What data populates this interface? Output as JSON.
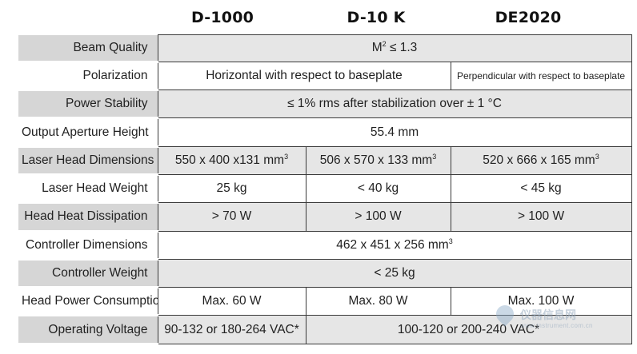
{
  "headers": [
    "D-1000",
    "D-10 K",
    "DE2020"
  ],
  "rows": [
    {
      "label": "Beam Quality",
      "cells": [
        {
          "span": 3,
          "text": "M",
          "sup": "2",
          "after": " ≤ 1.3"
        }
      ]
    },
    {
      "label": "Polarization",
      "cells": [
        {
          "span": 2,
          "text": "Horizontal with respect to baseplate"
        },
        {
          "span": 1,
          "text": "Perpendicular with respect to baseplate",
          "small": true
        }
      ]
    },
    {
      "label": "Power Stability",
      "cells": [
        {
          "span": 3,
          "text": "≤ 1% rms after stabilization over ± 1 °C"
        }
      ]
    },
    {
      "label": "Output Aperture Height",
      "cells": [
        {
          "span": 3,
          "text": "55.4 mm"
        }
      ]
    },
    {
      "label": "Laser Head Dimensions",
      "cells": [
        {
          "span": 1,
          "text": "550 x 400 x131 mm",
          "sup": "3"
        },
        {
          "span": 1,
          "text": "506 x 570 x 133 mm",
          "sup": "3"
        },
        {
          "span": 1,
          "text": "520 x 666 x 165 mm",
          "sup": "3"
        }
      ]
    },
    {
      "label": "Laser Head Weight",
      "cells": [
        {
          "span": 1,
          "text": "25 kg"
        },
        {
          "span": 1,
          "text": "< 40 kg"
        },
        {
          "span": 1,
          "text": "< 45 kg"
        }
      ]
    },
    {
      "label": "Head Heat Dissipation",
      "cells": [
        {
          "span": 1,
          "text": "> 70 W"
        },
        {
          "span": 1,
          "text": "> 100 W"
        },
        {
          "span": 1,
          "text": "> 100 W"
        }
      ]
    },
    {
      "label": "Controller Dimensions",
      "cells": [
        {
          "span": 3,
          "text": "462 x 451 x 256 mm",
          "sup": "3"
        }
      ]
    },
    {
      "label": "Controller Weight",
      "cells": [
        {
          "span": 3,
          "text": "< 25 kg"
        }
      ]
    },
    {
      "label": "Head Power Consumption",
      "cells": [
        {
          "span": 1,
          "text": "Max. 60 W"
        },
        {
          "span": 1,
          "text": "Max. 80 W"
        },
        {
          "span": 1,
          "text": "Max. 100 W"
        }
      ]
    },
    {
      "label": "Operating Voltage",
      "cells": [
        {
          "span": 1,
          "text": "90-132 or 180-264 VAC*"
        },
        {
          "span": 2,
          "text": "100-120 or 200-240 VAC*"
        }
      ]
    }
  ],
  "watermark": {
    "title": "仪器信息网",
    "url": "www.instrument.com.cn"
  }
}
